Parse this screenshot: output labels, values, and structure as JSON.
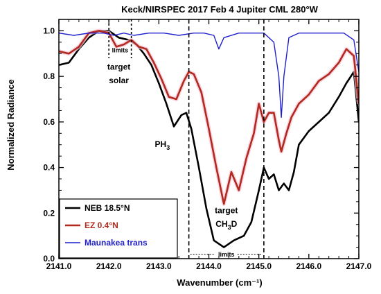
{
  "chart_data": {
    "type": "line",
    "title": "Keck/NIRSPEC 2017 Feb 4 Jupiter CML 280°W",
    "xlabel": "Wavenumber (cm⁻¹)",
    "ylabel": "Normalized Radiance",
    "xlim": [
      2141.0,
      2147.0
    ],
    "ylim": [
      0.0,
      1.05
    ],
    "x_ticks": [
      2141.0,
      2142.0,
      2143.0,
      2144.0,
      2145.0,
      2146.0,
      2147.0
    ],
    "x_tick_labels": [
      "2141.0",
      "2142.0",
      "2143.0",
      "2144.0",
      "2145.0",
      "2146.0",
      "2147.0"
    ],
    "y_ticks": [
      0.0,
      0.2,
      0.4,
      0.6,
      0.8,
      1.0
    ],
    "y_tick_labels": [
      "0.0",
      "0.2",
      "0.4",
      "0.6",
      "0.8",
      "1.0"
    ],
    "legend_position": "bottom-left",
    "series": [
      {
        "name": "NEB 18.5°N",
        "color": "#000000",
        "x": [
          2141.0,
          2141.2,
          2141.4,
          2141.6,
          2141.8,
          2142.0,
          2142.2,
          2142.4,
          2142.55,
          2142.7,
          2142.85,
          2143.0,
          2143.15,
          2143.3,
          2143.45,
          2143.55,
          2143.65,
          2143.8,
          2143.95,
          2144.1,
          2144.3,
          2144.5,
          2144.7,
          2144.85,
          2145.0,
          2145.1,
          2145.2,
          2145.3,
          2145.4,
          2145.5,
          2145.6,
          2145.7,
          2145.8,
          2146.0,
          2146.2,
          2146.4,
          2146.6,
          2146.75,
          2146.9,
          2147.0
        ],
        "y": [
          0.85,
          0.86,
          0.92,
          0.97,
          1.0,
          1.0,
          0.97,
          0.96,
          0.94,
          0.9,
          0.85,
          0.77,
          0.68,
          0.58,
          0.63,
          0.64,
          0.57,
          0.4,
          0.22,
          0.08,
          0.05,
          0.08,
          0.1,
          0.16,
          0.3,
          0.4,
          0.35,
          0.37,
          0.3,
          0.33,
          0.3,
          0.38,
          0.5,
          0.56,
          0.6,
          0.64,
          0.71,
          0.77,
          0.82,
          0.6
        ]
      },
      {
        "name": "EZ 0.4°N",
        "color": "#b22a1f",
        "x": [
          2141.0,
          2141.2,
          2141.4,
          2141.6,
          2141.8,
          2142.0,
          2142.15,
          2142.3,
          2142.45,
          2142.6,
          2142.75,
          2142.9,
          2143.05,
          2143.2,
          2143.35,
          2143.5,
          2143.6,
          2143.7,
          2143.85,
          2144.0,
          2144.15,
          2144.3,
          2144.45,
          2144.6,
          2144.75,
          2144.9,
          2145.0,
          2145.1,
          2145.2,
          2145.3,
          2145.4,
          2145.45,
          2145.55,
          2145.65,
          2145.8,
          2146.0,
          2146.2,
          2146.4,
          2146.6,
          2146.75,
          2146.9,
          2147.0
        ],
        "y": [
          0.91,
          0.9,
          0.93,
          0.99,
          1.0,
          0.99,
          0.93,
          0.94,
          0.96,
          0.93,
          0.92,
          0.86,
          0.79,
          0.71,
          0.7,
          0.78,
          0.82,
          0.81,
          0.73,
          0.57,
          0.4,
          0.24,
          0.38,
          0.3,
          0.44,
          0.55,
          0.68,
          0.6,
          0.64,
          0.64,
          0.52,
          0.47,
          0.55,
          0.62,
          0.68,
          0.72,
          0.78,
          0.81,
          0.86,
          0.92,
          0.89,
          0.68
        ]
      },
      {
        "name": "Maunakea trans",
        "color": "#1f1fcc",
        "x": [
          2141.0,
          2141.3,
          2141.6,
          2141.9,
          2142.1,
          2142.3,
          2142.5,
          2142.8,
          2143.1,
          2143.4,
          2143.7,
          2143.9,
          2144.1,
          2144.2,
          2144.3,
          2144.6,
          2144.9,
          2145.1,
          2145.3,
          2145.4,
          2145.45,
          2145.5,
          2145.6,
          2145.8,
          2146.1,
          2146.4,
          2146.7,
          2146.9,
          2147.0
        ],
        "y": [
          0.99,
          0.98,
          0.99,
          0.99,
          0.98,
          0.99,
          0.98,
          0.99,
          0.99,
          0.98,
          0.99,
          0.99,
          0.98,
          0.92,
          0.97,
          0.99,
          0.99,
          0.99,
          0.95,
          0.8,
          0.62,
          0.8,
          0.97,
          0.99,
          0.99,
          0.99,
          0.99,
          0.96,
          0.82
        ]
      }
    ],
    "annotations": {
      "solar_label_1": "target",
      "solar_label_2": "solar",
      "solar_limits_label": "limits",
      "ph3_label": "PH",
      "ph3_sub": "3",
      "ch3d_label_1": "target",
      "ch3d_prefix": "CH",
      "ch3d_sub": "3",
      "ch3d_suffix": "D",
      "ch3d_limits_label": "limits",
      "solar_limits_x": [
        2142.0,
        2142.45
      ],
      "ch3d_limits_x": [
        2143.6,
        2145.1
      ]
    }
  }
}
